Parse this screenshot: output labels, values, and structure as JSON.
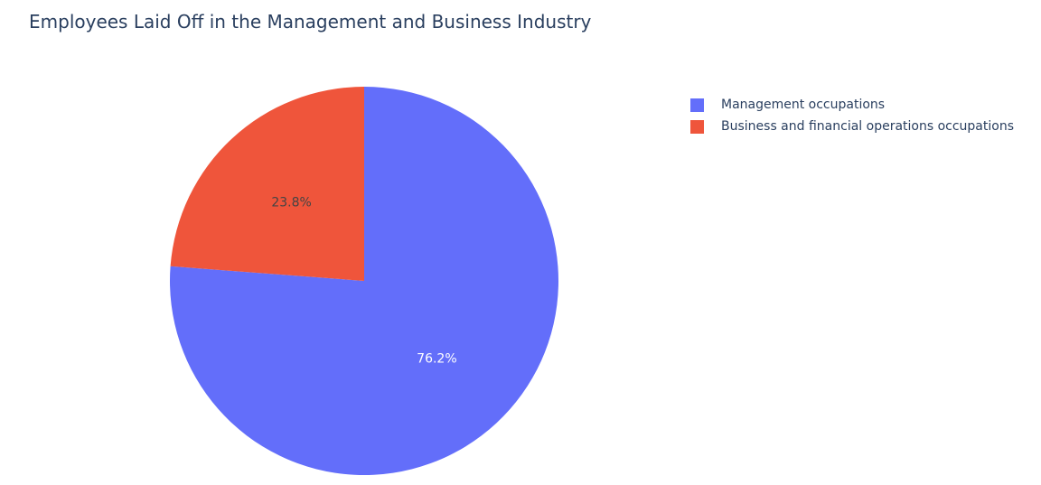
{
  "chart_data": {
    "type": "pie",
    "title": "Employees Laid Off in the Management and Business Industry",
    "slices": [
      {
        "name": "Management occupations",
        "percent": 76.2,
        "label": "76.2%",
        "color": "#636efa",
        "label_color": "#ffffff"
      },
      {
        "name": "Business and financial operations occupations",
        "percent": 23.8,
        "label": "23.8%",
        "color": "#ef553b",
        "label_color": "#444444"
      }
    ],
    "direction": "clockwise",
    "start_angle": "12 o'clock",
    "legend_position": "top-right"
  }
}
